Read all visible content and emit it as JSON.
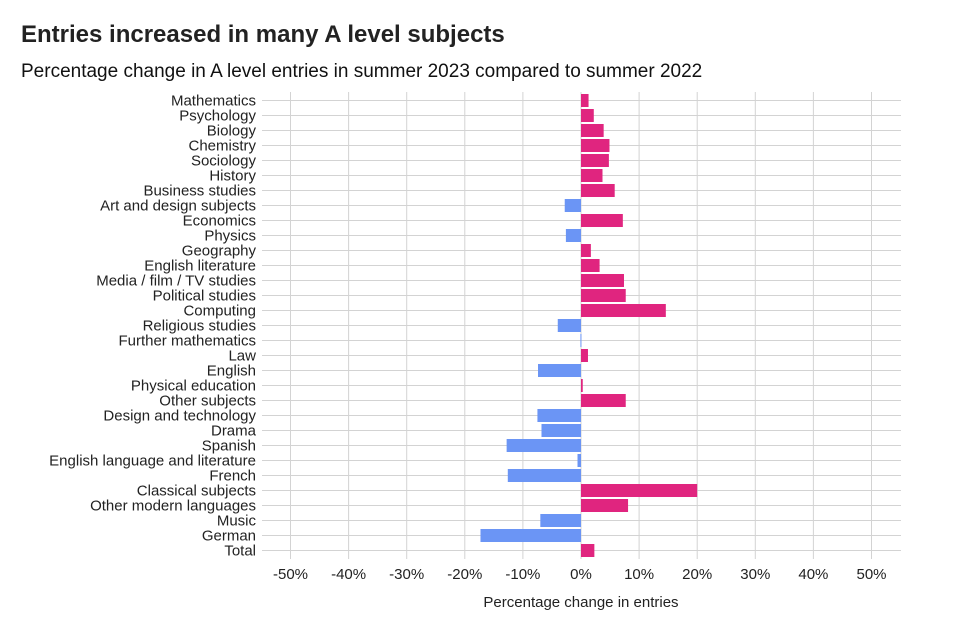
{
  "chart_data": {
    "type": "bar",
    "orientation": "horizontal",
    "title": "Entries increased in many A level subjects",
    "subtitle": "Percentage change in A level entries in summer 2023 compared to summer 2022",
    "xlabel": "Percentage change in entries",
    "ylabel": "",
    "xlim": [
      -55,
      55
    ],
    "x_ticks": [
      -50,
      -40,
      -30,
      -20,
      -10,
      0,
      10,
      20,
      30,
      40,
      50
    ],
    "x_tick_labels": [
      "-50%",
      "-40%",
      "-30%",
      "-20%",
      "-10%",
      "0%",
      "10%",
      "20%",
      "30%",
      "40%",
      "50%"
    ],
    "grid": "vertical",
    "legend": "none",
    "categories": [
      "Mathematics",
      "Psychology",
      "Biology",
      "Chemistry",
      "Sociology",
      "History",
      "Business studies",
      "Art and design subjects",
      "Economics",
      "Physics",
      "Geography",
      "English literature",
      "Media / film / TV studies",
      "Political studies",
      "Computing",
      "Religious studies",
      "Further mathematics",
      "Law",
      "English",
      "Physical education",
      "Other subjects",
      "Design and technology",
      "Drama",
      "Spanish",
      "English language and literature",
      "French",
      "Classical subjects",
      "Other modern languages",
      "Music",
      "German",
      "Total"
    ],
    "values": [
      1.3,
      2.2,
      3.9,
      4.9,
      4.8,
      3.7,
      5.8,
      -2.8,
      7.2,
      -2.6,
      1.7,
      3.2,
      7.4,
      7.7,
      14.6,
      -4.0,
      -0.1,
      1.2,
      -7.4,
      0.3,
      7.7,
      -7.5,
      -6.8,
      -12.8,
      -0.6,
      -12.6,
      20.0,
      8.1,
      -7.0,
      -17.3,
      2.3
    ],
    "colors": {
      "positive": "#e0257f",
      "negative": "#6b95f5"
    }
  }
}
